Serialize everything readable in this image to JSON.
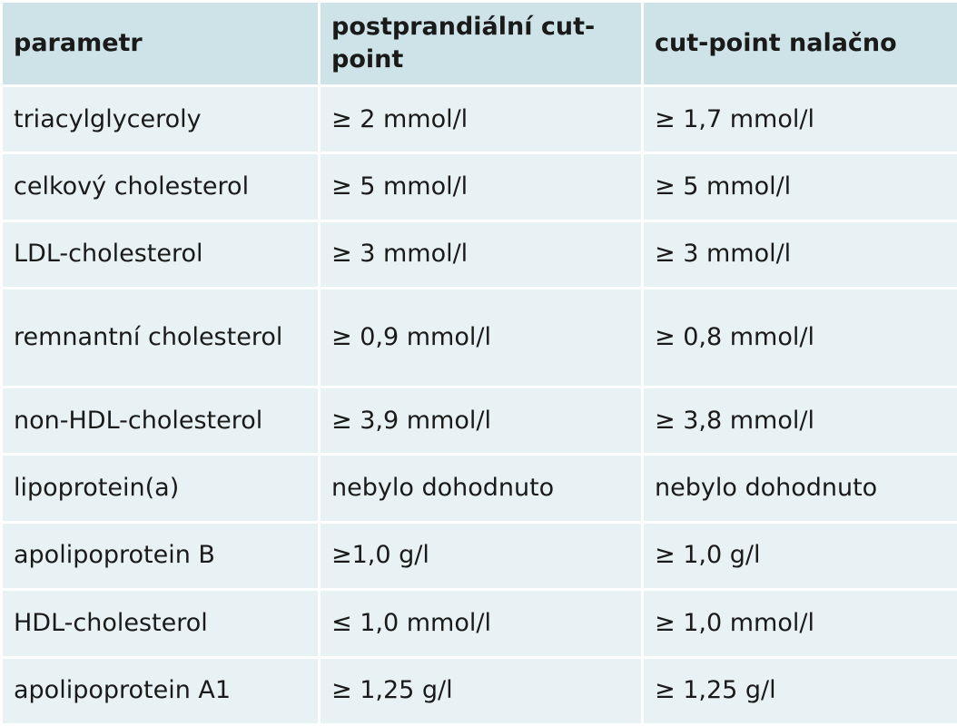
{
  "table": {
    "headers": [
      "parametr",
      "postprandiální cut-point",
      "cut-point nalačno"
    ],
    "rows": [
      [
        "triacylglyceroly",
        "≥ 2 mmol/l",
        "≥ 1,7 mmol/l"
      ],
      [
        "celkový cholesterol",
        "≥ 5 mmol/l",
        "≥ 5 mmol/l"
      ],
      [
        "LDL-cholesterol",
        "≥ 3 mmol/l",
        "≥ 3 mmol/l"
      ],
      [
        "remnantní cholesterol",
        "≥ 0,9 mmol/l",
        "≥ 0,8 mmol/l"
      ],
      [
        "non-HDL-cholesterol",
        "≥ 3,9 mmol/l",
        "≥ 3,8 mmol/l"
      ],
      [
        "lipoprotein(a)",
        "nebylo dohodnuto",
        "nebylo dohodnuto"
      ],
      [
        "apolipoprotein B",
        "≥1,0 g/l",
        "≥ 1,0 g/l"
      ],
      [
        "HDL-cholesterol",
        "≤ 1,0 mmol/l",
        "≥ 1,0 mmol/l"
      ],
      [
        "apolipoprotein A1",
        "≥ 1,25 g/l",
        "≥ 1,25 g/l"
      ]
    ]
  },
  "colors": {
    "header_background": "#cde3e7",
    "row_background": "#e8f1f3",
    "grid_lines": "#ffffff"
  }
}
